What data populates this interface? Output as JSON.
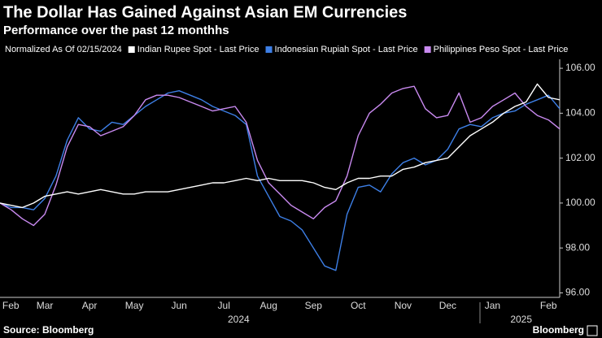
{
  "chart_data": {
    "type": "line",
    "title": "The Dollar Has Gained Against Asian EM Currencies",
    "subtitle": "Performance over the past 12 monthhs",
    "legend_title": "Normalized As Of 02/15/2024",
    "source": "Source: Bloomberg",
    "brand": "Bloomberg",
    "x": [
      0.5,
      0.75,
      1.0,
      1.25,
      1.5,
      1.75,
      2.0,
      2.25,
      2.5,
      2.75,
      3.0,
      3.25,
      3.5,
      3.75,
      4.0,
      4.25,
      4.5,
      4.75,
      5.0,
      5.25,
      5.5,
      5.75,
      6.0,
      6.25,
      6.5,
      6.75,
      7.0,
      7.25,
      7.5,
      7.75,
      8.0,
      8.25,
      8.5,
      8.75,
      9.0,
      9.25,
      9.5,
      9.75,
      10.0,
      10.25,
      10.5,
      10.75,
      11.0,
      11.25,
      11.5,
      11.75,
      12.0,
      12.25,
      12.5,
      12.75,
      13.0
    ],
    "series": [
      {
        "name": "Indian Rupee Spot - Last Price",
        "color": "#ffffff",
        "values": [
          100.0,
          99.9,
          99.8,
          100.0,
          100.3,
          100.4,
          100.5,
          100.4,
          100.5,
          100.6,
          100.5,
          100.4,
          100.4,
          100.5,
          100.5,
          100.5,
          100.6,
          100.7,
          100.8,
          100.9,
          100.9,
          101.0,
          101.1,
          101.0,
          101.1,
          101.0,
          101.0,
          101.0,
          100.9,
          100.7,
          100.6,
          100.9,
          101.1,
          101.1,
          101.2,
          101.2,
          101.5,
          101.6,
          101.8,
          101.9,
          102.0,
          102.5,
          103.0,
          103.3,
          103.6,
          104.0,
          104.3,
          104.5,
          105.3,
          104.7,
          104.6
        ]
      },
      {
        "name": "Indonesian Rupiah Spot - Last Price",
        "color": "#3d7fe6",
        "values": [
          100.0,
          99.8,
          99.8,
          99.7,
          100.2,
          101.2,
          102.8,
          103.8,
          103.3,
          103.2,
          103.6,
          103.5,
          103.9,
          104.3,
          104.6,
          104.9,
          105.0,
          104.8,
          104.6,
          104.3,
          104.1,
          103.9,
          103.5,
          101.2,
          100.3,
          99.4,
          99.2,
          98.8,
          98.0,
          97.2,
          97.0,
          99.5,
          100.7,
          100.8,
          100.5,
          101.3,
          101.8,
          102.0,
          101.7,
          101.9,
          102.4,
          103.3,
          103.5,
          103.4,
          103.8,
          104.0,
          104.1,
          104.4,
          104.6,
          104.8,
          104.2
        ]
      },
      {
        "name": "Philippines Peso Spot - Last Price",
        "color": "#c98af0",
        "values": [
          100.0,
          99.7,
          99.3,
          99.0,
          99.5,
          100.8,
          102.5,
          103.5,
          103.4,
          103.0,
          103.2,
          103.4,
          103.9,
          104.6,
          104.8,
          104.8,
          104.7,
          104.5,
          104.3,
          104.1,
          104.2,
          104.3,
          103.6,
          101.9,
          100.9,
          100.4,
          99.9,
          99.6,
          99.3,
          99.8,
          100.1,
          101.2,
          103.0,
          104.0,
          104.4,
          104.9,
          105.1,
          105.2,
          104.2,
          103.8,
          103.9,
          104.9,
          103.6,
          103.8,
          104.3,
          104.6,
          104.9,
          104.3,
          103.9,
          103.7,
          103.3
        ]
      }
    ],
    "xlim": [
      0.5,
      13.0
    ],
    "xticks": [
      {
        "value": 0.74,
        "label": "Feb"
      },
      {
        "value": 1.5,
        "label": "Mar"
      },
      {
        "value": 2.5,
        "label": "Apr"
      },
      {
        "value": 3.5,
        "label": "May"
      },
      {
        "value": 4.5,
        "label": "Jun"
      },
      {
        "value": 5.5,
        "label": "Jul"
      },
      {
        "value": 6.5,
        "label": "Aug"
      },
      {
        "value": 7.5,
        "label": "Sep"
      },
      {
        "value": 8.5,
        "label": "Oct"
      },
      {
        "value": 9.5,
        "label": "Nov"
      },
      {
        "value": 10.5,
        "label": "Dec"
      },
      {
        "value": 11.5,
        "label": "Jan"
      },
      {
        "value": 12.75,
        "label": "Feb"
      }
    ],
    "x_group_labels": [
      {
        "value": 5.83,
        "label": "2024"
      },
      {
        "value": 12.14,
        "label": "2025"
      }
    ],
    "ylim": [
      95.8,
      106.4
    ],
    "yticks": [
      {
        "value": 96,
        "label": "96.00"
      },
      {
        "value": 98,
        "label": "98.00"
      },
      {
        "value": 100,
        "label": "100.00"
      },
      {
        "value": 102,
        "label": "102.00"
      },
      {
        "value": 104,
        "label": "104.00"
      },
      {
        "value": 106,
        "label": "106.00"
      }
    ],
    "grid": false
  }
}
